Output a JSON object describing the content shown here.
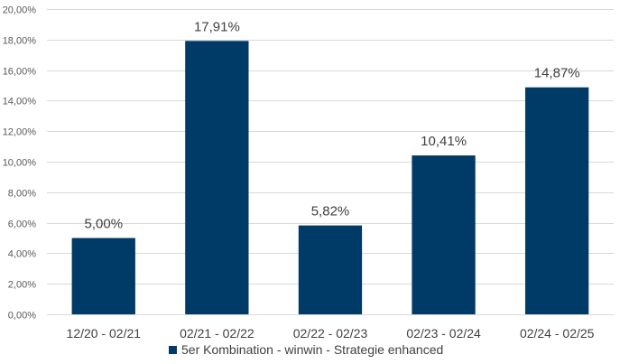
{
  "chart_data": {
    "type": "bar",
    "categories": [
      "12/20 - 02/21",
      "02/21 - 02/22",
      "02/22 - 02/23",
      "02/23 - 02/24",
      "02/24 - 02/25"
    ],
    "series": [
      {
        "name": "5er Kombination - winwin - Strategie enhanced",
        "values": [
          5.0,
          17.91,
          5.82,
          10.41,
          14.87
        ],
        "color": "#003A66"
      }
    ],
    "data_labels": [
      "5,00%",
      "17,91%",
      "5,82%",
      "10,41%",
      "14,87%"
    ],
    "y_tick_values": [
      0,
      2,
      4,
      6,
      8,
      10,
      12,
      14,
      16,
      18,
      20
    ],
    "y_tick_labels": [
      "0,00%",
      "2,00%",
      "4,00%",
      "6,00%",
      "8,00%",
      "10,00%",
      "12,00%",
      "14,00%",
      "16,00%",
      "18,00%",
      "20,00%"
    ],
    "ylim": [
      0,
      20
    ],
    "title": "",
    "xlabel": "",
    "ylabel": "",
    "grid": true,
    "legend": "bottom",
    "gridline_color": "#D9D9D9"
  }
}
